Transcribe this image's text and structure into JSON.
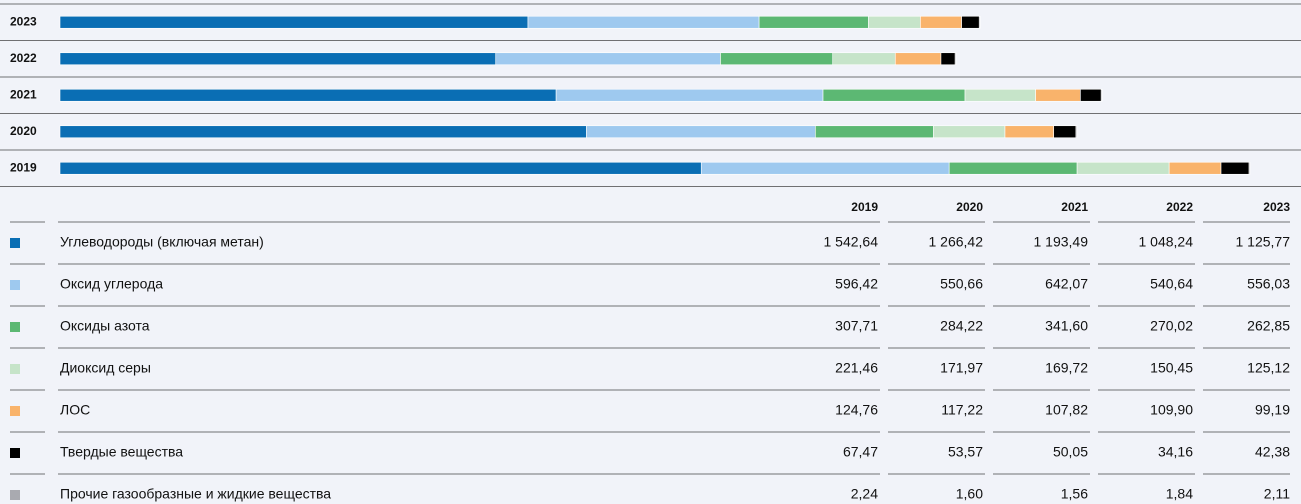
{
  "chart_data": {
    "type": "bar",
    "orientation": "horizontal",
    "stacked": true,
    "categories": [
      "2019",
      "2020",
      "2021",
      "2022",
      "2023"
    ],
    "series": [
      {
        "name": "Углеводороды (включая метан)",
        "color": "#0a6eb4",
        "values": [
          1542.64,
          1266.42,
          1193.49,
          1048.24,
          1125.77
        ],
        "value_labels": [
          "1 542,64",
          "1 266,42",
          "1 193,49",
          "1 048,24",
          "1 125,77"
        ]
      },
      {
        "name": "Оксид углерода",
        "color": "#9ec9ef",
        "values": [
          596.42,
          550.66,
          642.07,
          540.64,
          556.03
        ],
        "value_labels": [
          "596,42",
          "550,66",
          "642,07",
          "540,64",
          "556,03"
        ]
      },
      {
        "name": "Оксиды азота",
        "color": "#5cb873",
        "values": [
          307.71,
          284.22,
          341.6,
          270.02,
          262.85
        ],
        "value_labels": [
          "307,71",
          "284,22",
          "341,60",
          "270,02",
          "262,85"
        ]
      },
      {
        "name": "Диоксид серы",
        "color": "#c6e4c9",
        "values": [
          221.46,
          171.97,
          169.72,
          150.45,
          125.12
        ],
        "value_labels": [
          "221,46",
          "171,97",
          "169,72",
          "150,45",
          "125,12"
        ]
      },
      {
        "name": "ЛОС",
        "color": "#f9b36b",
        "values": [
          124.76,
          117.22,
          107.82,
          109.9,
          99.19
        ],
        "value_labels": [
          "124,76",
          "117,22",
          "107,82",
          "109,90",
          "99,19"
        ]
      },
      {
        "name": "Твердые вещества",
        "color": "#000000",
        "values": [
          67.47,
          53.57,
          50.05,
          34.16,
          42.38
        ],
        "value_labels": [
          "67,47",
          "53,57",
          "50,05",
          "34,16",
          "42,38"
        ]
      },
      {
        "name": "Прочие газообразные и жидкие вещества",
        "color": "#a9aab0",
        "values": [
          2.24,
          1.6,
          1.56,
          1.84,
          2.11
        ],
        "value_labels": [
          "2,24",
          "1,60",
          "1,56",
          "1,84",
          "2,11"
        ]
      }
    ]
  }
}
